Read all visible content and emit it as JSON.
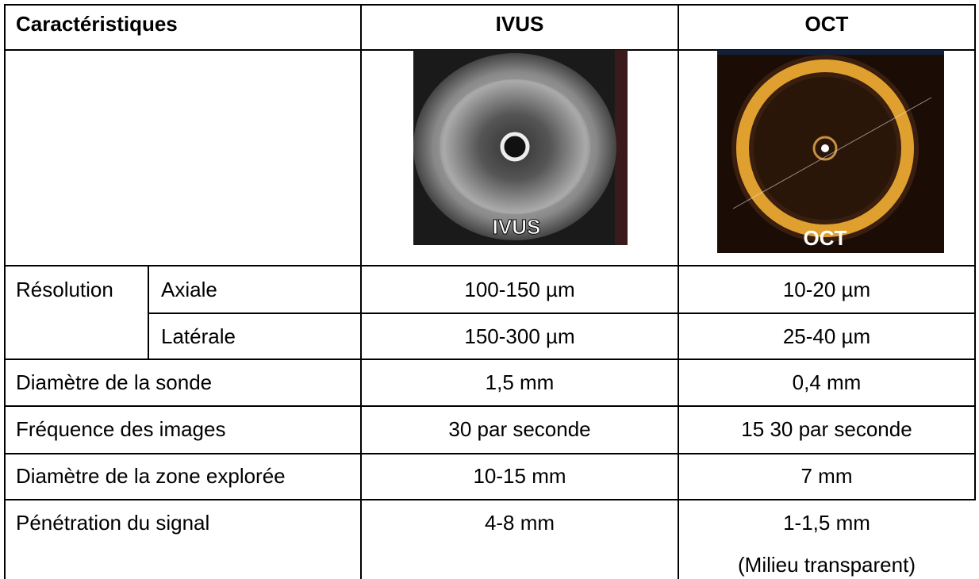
{
  "table": {
    "header": [
      "Caractéristiques",
      "IVUS",
      "OCT"
    ],
    "image_labels": [
      "IVUS",
      "OCT"
    ],
    "resolution": {
      "label": "Résolution",
      "rows": [
        [
          "Axiale",
          "100-150 µm",
          "10-20 µm"
        ],
        [
          "Latérale",
          "150-300 µm",
          "25-40 µm"
        ]
      ]
    },
    "rows": [
      [
        "Diamètre de la sonde",
        "1,5 mm",
        "0,4 mm"
      ],
      [
        "Fréquence des images",
        "30 par seconde",
        "15 30 par seconde"
      ],
      [
        "Diamètre de la zone explorée",
        "10-15 mm",
        "7 mm"
      ],
      [
        "Pénétration du signal",
        "4-8 mm",
        "1-1,5 mm"
      ]
    ],
    "note": "(Milieu transparent)"
  }
}
